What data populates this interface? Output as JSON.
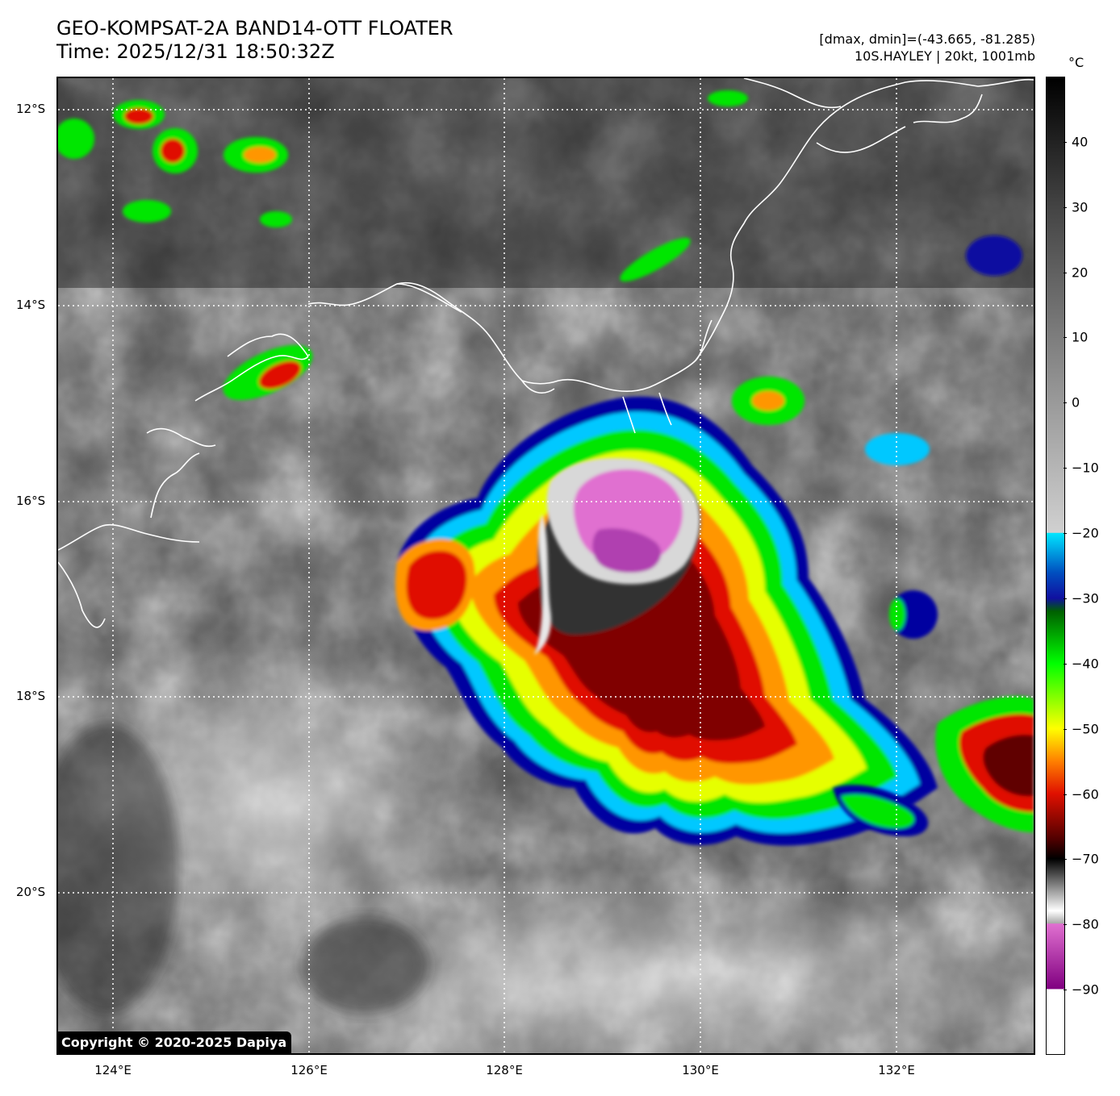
{
  "header": {
    "title_line1": "GEO-KOMPSAT-2A BAND14-OTT FLOATER",
    "title_line2": "Time: 2025/12/31 18:50:32Z",
    "dmax_dmin": "[dmax, dmin]=(-43.665, -81.285)",
    "storm_info": "10S.HAYLEY | 20kt, 1001mb"
  },
  "map": {
    "lat_labels": [
      "12°S",
      "14°S",
      "16°S",
      "18°S",
      "20°S"
    ],
    "lon_labels": [
      "124°E",
      "126°E",
      "128°E",
      "130°E",
      "132°E"
    ],
    "copyright": "Copyright © 2020-2025 Dapiya"
  },
  "colorbar": {
    "unit": "°C",
    "ticks": [
      "40",
      "30",
      "20",
      "10",
      "0",
      "−10",
      "−20",
      "−30",
      "−40",
      "−50",
      "−60",
      "−70",
      "−80",
      "−90"
    ],
    "colors": {
      "black_top": "#000000",
      "grey_mid": "#bdbdbd",
      "cyan": "#00e5ff",
      "blue": "#1010a0",
      "green": "#00ff00",
      "yellow": "#ffff00",
      "red": "#e01000",
      "dark_red": "#500000",
      "magenta": "#e070d0",
      "purple": "#800080"
    }
  }
}
